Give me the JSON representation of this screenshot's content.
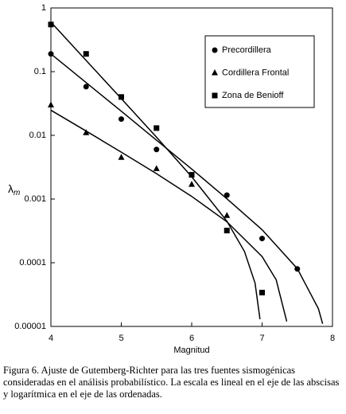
{
  "chart_data": {
    "type": "scatter",
    "xlabel": "Magnitud",
    "ylabel": "λ",
    "ylabel_sub": "m",
    "log_y": true,
    "xlim": [
      4,
      8
    ],
    "xticks": [
      4,
      5,
      6,
      7,
      8
    ],
    "ylim": [
      1e-05,
      1
    ],
    "yticks": [
      1,
      0.1,
      0.01,
      0.001,
      0.0001,
      {
        "value": 1e-05,
        "label": "0.00001"
      }
    ],
    "legend": "upper right",
    "series": [
      {
        "name": "Precordillera",
        "marker": "circle",
        "color": "#000000",
        "x": [
          4,
          4.5,
          5,
          5.5,
          6.5,
          7,
          7.5
        ],
        "values": [
          0.19,
          0.058,
          0.018,
          0.006,
          0.00115,
          0.00024,
          8e-05
        ],
        "curve": {
          "x": [
            4,
            4.5,
            5,
            5.5,
            6,
            6.5,
            7,
            7.5,
            7.8,
            7.86
          ],
          "values": [
            0.19,
            0.0674,
            0.0239,
            0.0084,
            0.00296,
            0.00101,
            0.00033,
            8.1e-05,
            1.9e-05,
            1.1e-05
          ]
        }
      },
      {
        "name": "Cordillera Frontal",
        "marker": "triangle",
        "color": "#000000",
        "x": [
          4,
          4.5,
          5,
          5.5,
          6,
          6.5
        ],
        "values": [
          0.03,
          0.011,
          0.0045,
          0.003,
          0.0017,
          0.00055
        ],
        "curve": {
          "x": [
            4,
            4.5,
            5,
            5.5,
            6,
            6.5,
            7,
            7.2,
            7.35
          ],
          "values": [
            0.0248,
            0.0117,
            0.00544,
            0.0025,
            0.0011,
            0.00044,
            0.000125,
            5.4e-05,
            1.2e-05
          ]
        }
      },
      {
        "name": "Zona de Benioff",
        "marker": "square",
        "color": "#000000",
        "x": [
          4,
          4.5,
          5,
          5.5,
          6,
          6.5,
          7
        ],
        "values": [
          0.55,
          0.19,
          0.04,
          0.013,
          0.0024,
          0.00032,
          3.4e-05
        ],
        "curve": {
          "x": [
            4,
            4.5,
            5,
            5.5,
            6,
            6.5,
            6.75,
            6.9,
            6.97
          ],
          "values": [
            0.6,
            0.15,
            0.0377,
            0.00936,
            0.00224,
            0.00045,
            0.00015,
            4.8e-05,
            1.3e-05
          ]
        }
      }
    ],
    "caption": "Figura 6. Ajuste de Gutemberg-Richter para las tres fuentes sismogénicas consideradas en el análisis probabilístico. La escala es lineal en el eje de las abscisas y logarítmica en el eje de las ordenadas."
  }
}
